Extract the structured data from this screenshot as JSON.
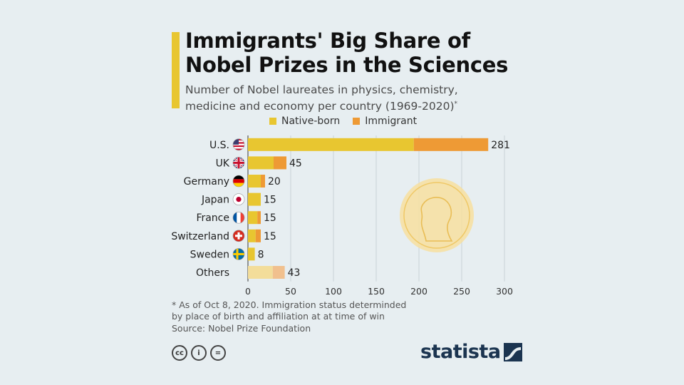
{
  "title": "Immigrants' Big Share of\nNobel Prizes in the Sciences",
  "subtitle": "Number of Nobel laureates in physics, chemistry,\nmedicine and economy per country (1969-2020)",
  "subtitle_mark": "*",
  "legend": {
    "native_label": "Native-born",
    "immigrant_label": "Immigrant"
  },
  "colors": {
    "native": "#e8c630",
    "immigrant": "#ee9a35",
    "others_native": "#f3dd9a",
    "others_immigrant": "#f1c08e",
    "accent": "#e8c630",
    "brand": "#1b3450"
  },
  "chart_data": {
    "type": "bar",
    "orientation": "horizontal",
    "stacked": true,
    "categories": [
      "U.S.",
      "UK",
      "Germany",
      "Japan",
      "France",
      "Switzerland",
      "Sweden",
      "Others"
    ],
    "series": [
      {
        "name": "Native-born",
        "values": [
          194,
          30,
          15,
          15,
          11,
          9,
          8,
          29
        ]
      },
      {
        "name": "Immigrant",
        "values": [
          87,
          15,
          5,
          0,
          4,
          6,
          0,
          14
        ]
      }
    ],
    "totals": [
      281,
      45,
      20,
      15,
      15,
      15,
      8,
      43
    ],
    "xlim": [
      0,
      300
    ],
    "xticks": [
      0,
      50,
      100,
      150,
      200,
      250,
      300
    ],
    "grid": "vertical",
    "legend": "top",
    "flag_icons": [
      "us-flag-icon",
      "uk-flag-icon",
      "germany-flag-icon",
      "japan-flag-icon",
      "france-flag-icon",
      "switzerland-flag-icon",
      "sweden-flag-icon",
      null
    ]
  },
  "footnote": "* As of Oct 8, 2020. Immigration status determinded\n   by place of birth and affiliation at at time of win",
  "source": "Source: Nobel Prize Foundation",
  "license_icons": [
    "cc-icon",
    "by-icon",
    "nd-icon"
  ],
  "license_labels": [
    "cc",
    "i",
    "="
  ],
  "brand": "statista"
}
